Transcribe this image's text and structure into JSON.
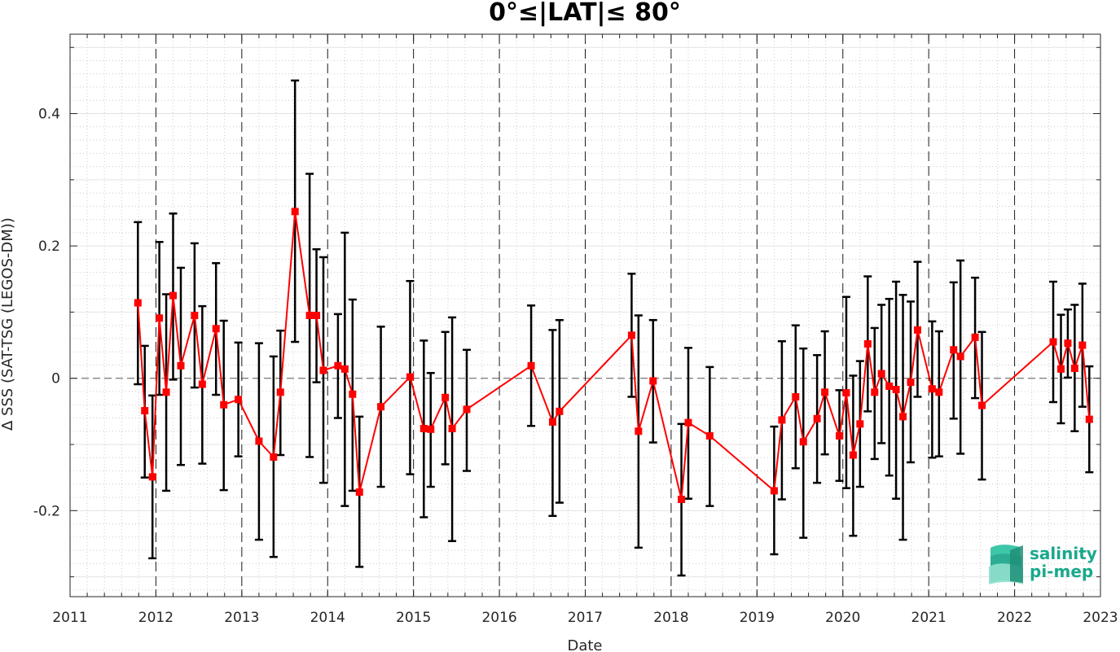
{
  "chart_data": {
    "type": "line",
    "title": "0°≤|LAT|≤ 80°",
    "xlabel": "Date",
    "ylabel": "∆ SSS (SAT-TSG (LEGOS-DM))",
    "xlim": [
      2011,
      2023
    ],
    "ylim": [
      -0.33,
      0.52
    ],
    "x_ticks": [
      2011,
      2012,
      2013,
      2014,
      2015,
      2016,
      2017,
      2018,
      2019,
      2020,
      2021,
      2022,
      2023
    ],
    "x_tick_labels": [
      "2011",
      "2012",
      "2013",
      "2014",
      "2015",
      "2016",
      "2017",
      "2018",
      "2019",
      "2020",
      "2021",
      "2022",
      "2023"
    ],
    "y_ticks": [
      -0.2,
      0,
      0.2,
      0.4
    ],
    "y_tick_labels": [
      "-0.2",
      "0",
      "0.2",
      "0.4"
    ],
    "grid": "on",
    "year_dividers": "dashed vertical lines at each year",
    "series": [
      {
        "color": "#ff0000",
        "marker": "square",
        "errorbar_color": "#000000",
        "x": [
          2011.79,
          2011.87,
          2011.96,
          2012.04,
          2012.12,
          2012.2,
          2012.29,
          2012.45,
          2012.54,
          2012.7,
          2012.79,
          2012.96,
          2013.2,
          2013.37,
          2013.45,
          2013.62,
          2013.79,
          2013.87,
          2013.95,
          2014.12,
          2014.2,
          2014.29,
          2014.37,
          2014.62,
          2014.96,
          2015.12,
          2015.2,
          2015.37,
          2015.45,
          2015.62,
          2016.37,
          2016.62,
          2016.7,
          2017.54,
          2017.62,
          2017.79,
          2018.12,
          2018.2,
          2018.45,
          2019.2,
          2019.29,
          2019.45,
          2019.54,
          2019.7,
          2019.79,
          2019.96,
          2020.04,
          2020.12,
          2020.2,
          2020.29,
          2020.37,
          2020.45,
          2020.54,
          2020.62,
          2020.7,
          2020.79,
          2020.87,
          2021.04,
          2021.12,
          2021.29,
          2021.37,
          2021.54,
          2021.62,
          2022.45,
          2022.54,
          2022.62,
          2022.7,
          2022.79,
          2022.87
        ],
        "y": [
          0.114,
          -0.049,
          -0.149,
          0.091,
          -0.021,
          0.125,
          0.019,
          0.095,
          -0.009,
          0.075,
          -0.04,
          -0.032,
          -0.095,
          -0.119,
          -0.021,
          0.252,
          0.095,
          0.095,
          0.012,
          0.019,
          0.014,
          -0.024,
          -0.172,
          -0.043,
          0.002,
          -0.076,
          -0.077,
          -0.029,
          -0.076,
          -0.047,
          0.019,
          -0.066,
          -0.05,
          0.065,
          -0.08,
          -0.004,
          -0.183,
          -0.067,
          -0.087,
          -0.17,
          -0.063,
          -0.028,
          -0.096,
          -0.061,
          -0.021,
          -0.087,
          -0.022,
          -0.116,
          -0.069,
          0.052,
          -0.021,
          0.007,
          -0.012,
          -0.017,
          -0.058,
          -0.006,
          0.073,
          -0.016,
          -0.021,
          0.043,
          0.033,
          0.062,
          -0.041,
          0.055,
          0.014,
          0.053,
          0.015,
          0.05,
          -0.062
        ],
        "y_lower": [
          -0.009,
          -0.15,
          -0.272,
          -0.025,
          -0.17,
          -0.002,
          -0.131,
          -0.014,
          -0.129,
          -0.025,
          -0.169,
          -0.118,
          -0.244,
          -0.27,
          -0.116,
          0.055,
          -0.119,
          -0.006,
          -0.158,
          -0.06,
          -0.193,
          -0.17,
          -0.285,
          -0.164,
          -0.145,
          -0.21,
          -0.164,
          -0.13,
          -0.246,
          -0.14,
          -0.072,
          -0.208,
          -0.188,
          -0.028,
          -0.256,
          -0.097,
          -0.298,
          -0.182,
          -0.193,
          -0.266,
          -0.183,
          -0.136,
          -0.241,
          -0.158,
          -0.115,
          -0.155,
          -0.166,
          -0.238,
          -0.164,
          -0.05,
          -0.122,
          -0.098,
          -0.147,
          -0.182,
          -0.244,
          -0.127,
          -0.028,
          -0.12,
          -0.118,
          -0.061,
          -0.114,
          -0.03,
          -0.153,
          -0.036,
          -0.068,
          0.001,
          -0.08,
          -0.043,
          -0.142
        ],
        "y_upper": [
          0.236,
          0.049,
          -0.026,
          0.206,
          0.127,
          0.249,
          0.167,
          0.204,
          0.109,
          0.174,
          0.087,
          0.054,
          0.053,
          0.033,
          0.072,
          0.45,
          0.309,
          0.195,
          0.183,
          0.097,
          0.22,
          0.119,
          -0.058,
          0.078,
          0.147,
          0.057,
          0.008,
          0.07,
          0.092,
          0.043,
          0.11,
          0.073,
          0.088,
          0.158,
          0.095,
          0.088,
          -0.069,
          0.046,
          0.017,
          -0.073,
          0.056,
          0.08,
          0.045,
          0.035,
          0.071,
          -0.018,
          0.123,
          0.004,
          0.026,
          0.154,
          0.076,
          0.111,
          0.12,
          0.146,
          0.126,
          0.116,
          0.176,
          0.086,
          0.071,
          0.145,
          0.178,
          0.152,
          0.07,
          0.146,
          0.096,
          0.104,
          0.111,
          0.143,
          0.018
        ]
      }
    ]
  },
  "logo": {
    "line1": "salinity",
    "line2": "pi-mep"
  }
}
